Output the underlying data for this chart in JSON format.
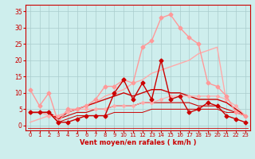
{
  "x": [
    0,
    1,
    2,
    3,
    4,
    5,
    6,
    7,
    8,
    9,
    10,
    11,
    12,
    13,
    14,
    15,
    16,
    17,
    18,
    19,
    20,
    21,
    22,
    23
  ],
  "bg_color": "#ceeeed",
  "grid_color": "#aacccc",
  "xlabel": "Vent moyen/en rafales ( km/h )",
  "xlabel_color": "#cc0000",
  "tick_color": "#cc0000",
  "axis_color": "#cc0000",
  "line_gust_y": [
    11,
    6,
    10,
    1,
    5,
    5,
    6,
    8,
    12,
    12,
    14,
    13,
    24,
    26,
    33,
    34,
    30,
    27,
    25,
    13,
    12,
    9,
    4,
    3
  ],
  "line_gust_color": "#ff9999",
  "line_gust_ms": 2.5,
  "line_diag_y": [
    1,
    2,
    3,
    3,
    4,
    5,
    6,
    7,
    9,
    10,
    11,
    13,
    14,
    16,
    17,
    18,
    19,
    20,
    22,
    23,
    24,
    7,
    5,
    3
  ],
  "line_diag_color": "#ffaaaa",
  "line_diag_lw": 1.0,
  "line_mean_y": [
    4,
    4,
    4,
    1,
    1,
    2,
    3,
    3,
    3,
    10,
    14,
    8,
    13,
    8,
    20,
    8,
    9,
    4,
    5,
    7,
    6,
    3,
    2,
    1
  ],
  "line_mean_color": "#cc0000",
  "line_mean_ms": 2.5,
  "line_upper_y": [
    4,
    4,
    4,
    2,
    4,
    5,
    6,
    7,
    8,
    9,
    10,
    9,
    10,
    11,
    11,
    10,
    10,
    9,
    8,
    8,
    8,
    7,
    5,
    3
  ],
  "line_upper_color": "#cc0000",
  "line_upper_lw": 1.0,
  "line_mid_y": [
    4,
    4,
    4,
    2,
    3,
    4,
    4,
    5,
    5,
    6,
    6,
    6,
    7,
    7,
    7,
    7,
    7,
    7,
    6,
    6,
    6,
    5,
    4,
    3
  ],
  "line_mid_color": "#cc0000",
  "line_mid_lw": 0.8,
  "line_low_y": [
    4,
    4,
    4,
    1,
    2,
    3,
    3,
    3,
    3,
    4,
    4,
    4,
    4,
    5,
    5,
    5,
    5,
    5,
    5,
    5,
    5,
    4,
    4,
    3
  ],
  "line_low_color": "#cc0000",
  "line_low_lw": 0.7,
  "line_pink_flat_y": [
    4,
    4,
    3,
    3,
    4,
    5,
    5,
    5,
    5,
    6,
    6,
    6,
    7,
    7,
    8,
    9,
    9,
    9,
    9,
    9,
    9,
    8,
    6,
    3
  ],
  "line_pink_flat_color": "#ffaaaa",
  "line_pink_flat_ms": 2.0,
  "ylim": [
    -1.5,
    37
  ],
  "yticks": [
    0,
    5,
    10,
    15,
    20,
    25,
    30,
    35
  ],
  "xlim": [
    -0.5,
    23.5
  ],
  "xticks": [
    0,
    1,
    2,
    3,
    4,
    5,
    6,
    7,
    8,
    9,
    10,
    11,
    12,
    13,
    14,
    15,
    16,
    17,
    18,
    19,
    20,
    21,
    22,
    23
  ]
}
